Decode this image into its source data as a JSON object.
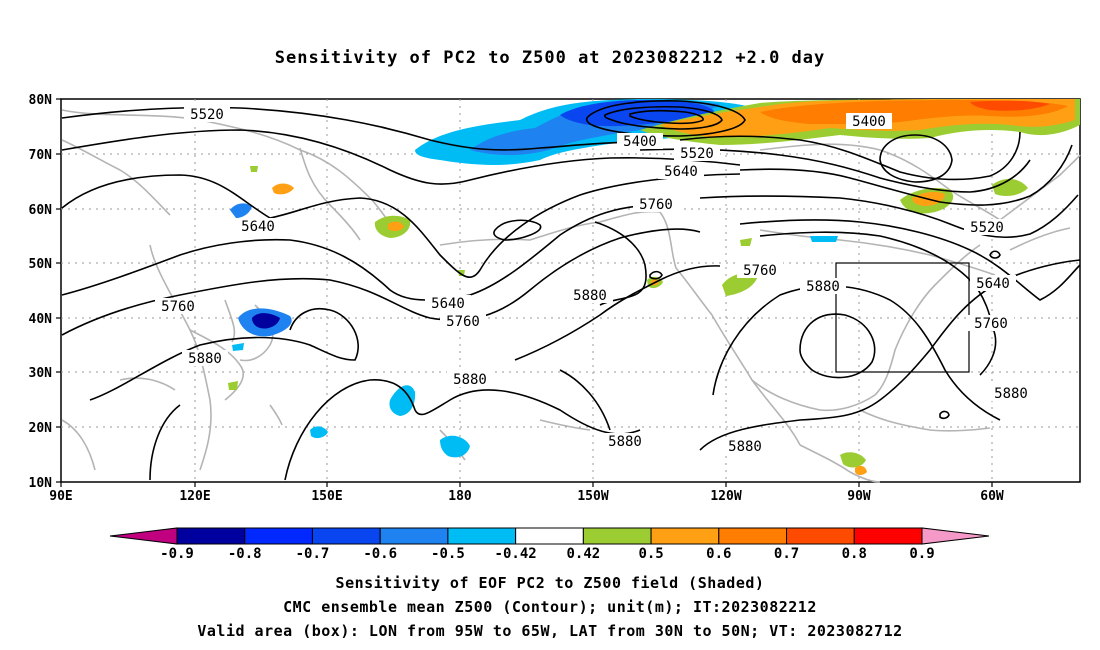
{
  "title": "Sensitivity of PC2 to Z500 at 2023082212 +2.0 day",
  "lat_labels": [
    "80N",
    "70N",
    "60N",
    "50N",
    "40N",
    "30N",
    "20N",
    "10N"
  ],
  "lon_labels": [
    "90E",
    "120E",
    "150E",
    "180",
    "150W",
    "120W",
    "90W",
    "60W"
  ],
  "contour_labels": [
    "5520",
    "5400",
    "5520",
    "5640",
    "5760",
    "5640",
    "5760",
    "5880",
    "5880",
    "5880",
    "5880",
    "5760",
    "5880",
    "5400",
    "5520",
    "5640",
    "5760",
    "5880"
  ],
  "colorbar": {
    "labels": [
      "-0.9",
      "-0.8",
      "-0.7",
      "-0.6",
      "-0.5",
      "-0.42",
      "0.42",
      "0.5",
      "0.6",
      "0.7",
      "0.8",
      "0.9"
    ],
    "colors": [
      "#c0007f",
      "#00009f",
      "#0028ff",
      "#0a46ef",
      "#1e82f0",
      "#00bcf5",
      "#ffffff",
      "#9bcd32",
      "#ffa014",
      "#ff7d00",
      "#ff4b00",
      "#ff0000",
      "#f59ac8"
    ]
  },
  "footer": {
    "line1": "Sensitivity of EOF PC2 to Z500 field (Shaded)",
    "line2": "CMC ensemble mean Z500 (Contour); unit(m); IT:2023082212",
    "line3": "Valid area (box): LON from 95W to 65W, LAT from 30N to 50N; VT: 2023082712"
  }
}
